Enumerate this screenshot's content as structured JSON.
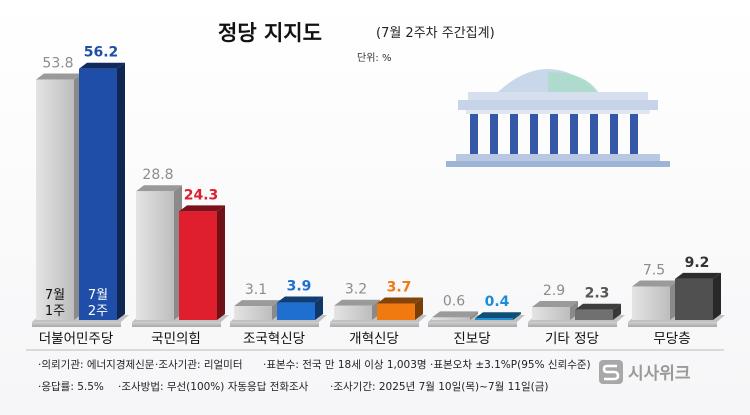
{
  "chart_data": {
    "type": "bar",
    "title": "정당 지지도",
    "subtitle": "(7월 2주차 주간집계)",
    "unit": "단위: %",
    "categories": [
      "더불어민주당",
      "국민의힘",
      "조국혁신당",
      "개혁신당",
      "진보당",
      "기타 정당",
      "무당층"
    ],
    "series": [
      {
        "name": "7월 1주",
        "values": [
          53.8,
          28.8,
          3.1,
          3.2,
          0.6,
          2.9,
          7.5
        ]
      },
      {
        "name": "7월 2주",
        "values": [
          56.2,
          24.3,
          3.9,
          3.7,
          0.4,
          2.3,
          9.2
        ]
      }
    ],
    "series_labels": [
      [
        "7월",
        "1주"
      ],
      [
        "7월",
        "2주"
      ]
    ],
    "ylim": [
      0,
      60
    ],
    "grid": false,
    "colors": {
      "prev": "#c8c8c8",
      "current": [
        "#1f4ea8",
        "#e01f2e",
        "#1e6fd0",
        "#f07a10",
        "#1a8fd8",
        "#707070",
        "#505050"
      ],
      "current_text": [
        "#1f4ea8",
        "#e01f2e",
        "#1e6fd0",
        "#f07a10",
        "#1a8fd8",
        "#555555",
        "#333333"
      ]
    }
  },
  "footnotes": [
    [
      "·의뢰기관: 에너지경제신문",
      "·조사기관: 리얼미터",
      "·표본수: 전국 만 18세 이상 1,003명",
      "·표본오차 ±3.1%P(95% 신뢰수준)"
    ],
    [
      "·응답률: 5.5%",
      "·조사방법: 무선(100%) 자동응답 전화조사",
      "·조사기간:  2025년 7월 10일(목)~7월 11일(금)"
    ]
  ],
  "logo": {
    "text": "시사위크",
    "icon": "sisaweek-s-logo-icon"
  },
  "illustration": {
    "icon": "national-assembly-building-icon"
  }
}
